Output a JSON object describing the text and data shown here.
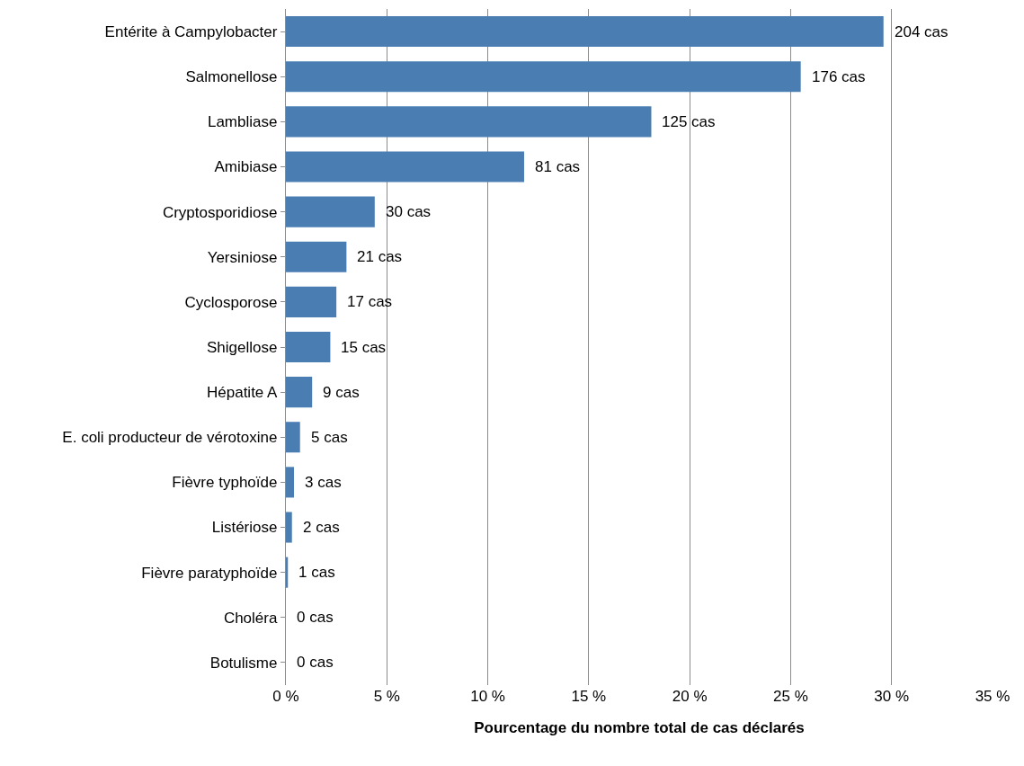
{
  "chart_data": {
    "type": "bar",
    "orientation": "horizontal",
    "xlabel": "Pourcentage du nombre total de cas déclarés",
    "categories": [
      "Entérite à Campylobacter",
      "Salmonellose",
      "Lambliase",
      "Amibiase",
      "Cryptosporidiose",
      "Yersiniose",
      "Cyclosporose",
      "Shigellose",
      "Hépatite A",
      "E. coli producteur de vérotoxine",
      "Fièvre typhoïde",
      "Listériose",
      "Fièvre paratyphoïde",
      "Choléra",
      "Botulisme"
    ],
    "values": [
      29.6,
      25.5,
      18.1,
      11.8,
      4.4,
      3.0,
      2.5,
      2.2,
      1.3,
      0.7,
      0.4,
      0.3,
      0.1,
      0,
      0
    ],
    "annotations": [
      {
        "text": "204 cas",
        "x": 29.6,
        "y": "Entérite à Campylobacter"
      },
      {
        "text": "176 cas",
        "x": 25.5,
        "y": "Salmonellose"
      },
      {
        "text": "125 cas",
        "x": 18.1,
        "y": "Lambliase"
      },
      {
        "text": "81 cas",
        "x": 11.8,
        "y": "Amibiase"
      },
      {
        "text": "30 cas",
        "x": 4.4,
        "y": "Cryptosporidiose"
      },
      {
        "text": "21 cas",
        "x": 3.0,
        "y": "Yersiniose"
      },
      {
        "text": "17 cas",
        "x": 2.5,
        "y": "Cyclosporose"
      },
      {
        "text": "15 cas",
        "x": 2.2,
        "y": "Shigellose"
      },
      {
        "text": "9 cas",
        "x": 1.3,
        "y": "Hépatite A"
      },
      {
        "text": "5 cas",
        "x": 0.7,
        "y": "E. coli producteur de vérotoxine"
      },
      {
        "text": "3 cas",
        "x": 0.4,
        "y": "Fièvre typhoïde"
      },
      {
        "text": "2 cas",
        "x": 0.3,
        "y": "Listériose"
      },
      {
        "text": "1 cas",
        "x": 0.1,
        "y": "Fièvre paratyphoïde"
      },
      {
        "text": "0 cas",
        "x": 0,
        "y": "Choléra"
      },
      {
        "text": "0 cas",
        "x": 0,
        "y": "Botulisme"
      }
    ],
    "color": "#4a7eb3",
    "xlim": [
      0,
      35
    ],
    "xticks": [
      {
        "value": 0,
        "label": "0 %"
      },
      {
        "value": 5,
        "label": "5 %"
      },
      {
        "value": 10,
        "label": "10 %"
      },
      {
        "value": 15,
        "label": "15 %"
      },
      {
        "value": 20,
        "label": "20 %"
      },
      {
        "value": 25,
        "label": "25 %"
      },
      {
        "value": 30,
        "label": "30 %"
      },
      {
        "value": 35,
        "label": "35 %"
      }
    ],
    "grid": "x"
  }
}
